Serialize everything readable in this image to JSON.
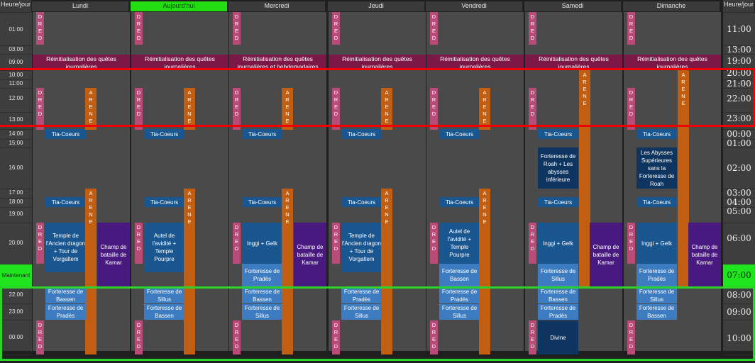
{
  "header": {
    "left_label": "Heure/jour",
    "right_label": "Heure/jour",
    "days": [
      "Lundi",
      "Aujourd'hui",
      "Mercredi",
      "Jeudi",
      "Vendredi",
      "Samedi",
      "Dimanche"
    ],
    "today_index": 1
  },
  "left_times": [
    "01:00",
    "03:00",
    "09:00",
    "10:00",
    "11:00",
    "12:00",
    "13:00",
    "14:00",
    "15:00",
    "16:00",
    "17:00",
    "18:00",
    "19:00",
    "20:00",
    "Maintenant",
    "22:00",
    "23:00",
    "00:00"
  ],
  "right_times": [
    "11:00",
    "13:00",
    "19:00",
    "20:00",
    "21:00",
    "22:00",
    "23:00",
    "00:00",
    "01:00",
    "02:00",
    "03:00",
    "04:00",
    "05:00",
    "06:00",
    "07:00",
    "08:00",
    "09:00",
    "10:00"
  ],
  "labels": {
    "dred": [
      "D",
      "R",
      "E",
      "D"
    ],
    "arene": [
      "A",
      "R",
      "E",
      "N",
      "E"
    ]
  },
  "days": [
    {
      "reinit": "Réinitialisation des quêtes journalières",
      "tia1": "Tia-Coeurs",
      "tia2": "Tia-Coeurs",
      "mid": null,
      "main": "Temple de l'Ancien dragon + Tour de Vorgaltem",
      "sub1": null,
      "right": "Champ de bataille de Kamar",
      "late1": "Forteresse de Bassen",
      "late2": "Forteresse de Pradès",
      "night": null
    },
    {
      "reinit": "Réinitialisation des quêtes journalières",
      "tia1": "Tia-Coeurs",
      "tia2": "Tia-Coeurs",
      "mid": null,
      "main": "Autel de l'avidité + Temple Pourpre",
      "sub1": null,
      "right": null,
      "late1": "Forteresse de Sillus",
      "late2": "Forteresse de Bassen",
      "night": null
    },
    {
      "reinit": "Réinitialisation des quêtes journalières et hebdomadaires",
      "tia1": "Tia-Coeurs",
      "tia2": "Tia-Coeurs",
      "mid": null,
      "main": "Inggi + Gelk",
      "sub1": "Forteresse de Pradès",
      "right": "Champ de bataille de Kamar",
      "late1": "Forteresse de Bassen",
      "late2": "Forteresse de Sillus",
      "night": null
    },
    {
      "reinit": "Réinitialisation des quêtes journalières",
      "tia1": "Tia-Coeurs",
      "tia2": "Tia-Coeurs",
      "mid": null,
      "main": "Temple de l'Ancien dragon + Tour de Vorgaltem",
      "sub1": null,
      "right": null,
      "late1": "Forteresse de Pradès",
      "late2": "Forteresse de Sillus",
      "night": null
    },
    {
      "reinit": "Réinitialisation des quêtes journalières",
      "tia1": "Tia-Coeurs",
      "tia2": "Tia-Coeurs",
      "mid": null,
      "main": "Autel de l'avidité + Temple Pourpre",
      "sub1": "Forteresse de Bassen",
      "right": null,
      "late1": "Forteresse de Pradès",
      "late2": "Forteresse de Sillus",
      "night": null
    },
    {
      "reinit": "Réinitialisation des quêtes journalières",
      "tia1": "Tia-Coeurs",
      "tia2": "Tia-Coeurs",
      "mid": "Forteresse de Roah + Les abysses inférieure",
      "main": "Inggi + Gelk",
      "sub1": "Forteresse de Sillus",
      "right": "Champ de bataille de Kamar",
      "late1": "Forteresse de Bassen",
      "late2": "Forteresse de Pradès",
      "night": "Divine"
    },
    {
      "reinit": "Réinitialisation des quêtes journalières",
      "tia1": "Tia-Coeurs",
      "tia2": "Tia-Coeurs",
      "mid": "Les Abysses Supérieures sans la Forteresse de Roah",
      "main": "Inggi + Gelk",
      "sub1": "Forteresse de Pradès",
      "right": "Champ de bataille de Kamar",
      "late1": "Forteresse de Sillus",
      "late2": "Forteresse de Bassen",
      "night": null
    }
  ]
}
